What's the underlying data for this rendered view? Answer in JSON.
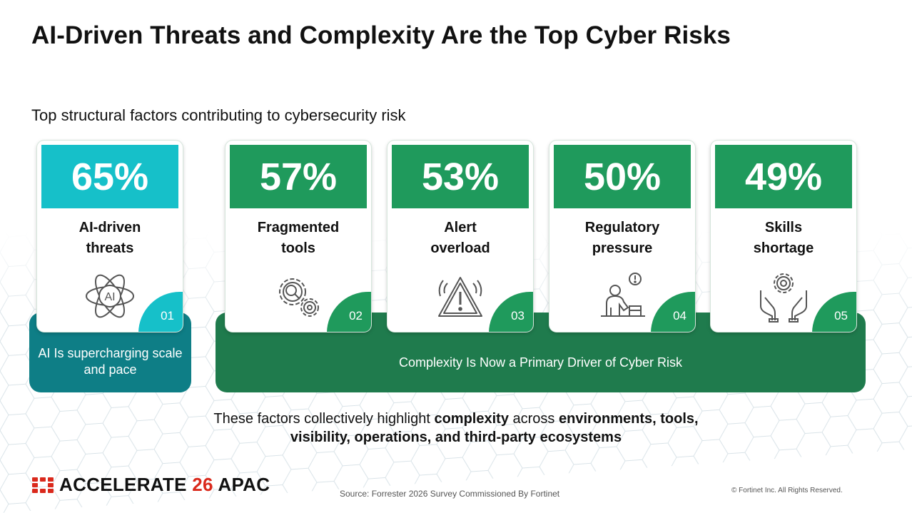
{
  "title": "AI-Driven Threats and Complexity Are the Top Cyber Risks",
  "subtitle": "Top structural factors contributing to cybersecurity risk",
  "colors": {
    "teal": "#16c0c9",
    "green": "#1f9a5c",
    "ai_panel": "#0e7e86",
    "complexity_panel": "#1f7b4d",
    "brand_red": "#da291c"
  },
  "cards": [
    {
      "pct": "65%",
      "line1": "AI-driven",
      "line2": "threats",
      "num": "01",
      "icon": "ai-atom-icon",
      "color": "teal"
    },
    {
      "pct": "57%",
      "line1": "Fragmented",
      "line2": "tools",
      "num": "02",
      "icon": "gears-search-icon",
      "color": "green"
    },
    {
      "pct": "53%",
      "line1": "Alert",
      "line2": "overload",
      "num": "03",
      "icon": "warning-triangle-icon",
      "color": "green"
    },
    {
      "pct": "50%",
      "line1": "Regulatory",
      "line2": "pressure",
      "num": "04",
      "icon": "stressed-person-icon",
      "color": "green"
    },
    {
      "pct": "49%",
      "line1": "Skills",
      "line2": "shortage",
      "num": "05",
      "icon": "hands-gear-icon",
      "color": "green"
    }
  ],
  "panels": {
    "ai_line1": "AI Is supercharging scale",
    "ai_line2": "and pace",
    "complexity": "Complexity Is Now a Primary Driver of Cyber Risk"
  },
  "summary": {
    "p1": "These factors collectively highlight ",
    "b1": "complexity",
    "p2": " across ",
    "b2": "environments, tools,",
    "b3": "visibility, operations, and third-party ecosystems"
  },
  "brand": {
    "name": "ACCELERATE",
    "year": "26",
    "region": "APAC"
  },
  "source": "Source: Forrester 2026 Survey Commissioned By Fortinet",
  "copyright": "© Fortinet Inc. All Rights Reserved."
}
